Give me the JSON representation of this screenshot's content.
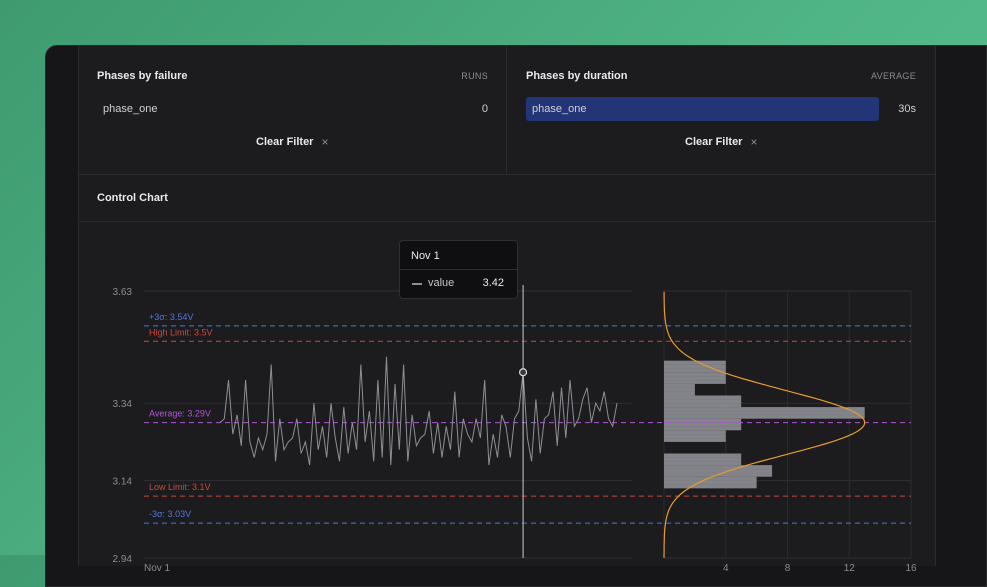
{
  "failure": {
    "title": "Phases by failure",
    "header": "RUNS",
    "row_label": "phase_one",
    "row_value": "0",
    "clear_label": "Clear Filter"
  },
  "duration": {
    "title": "Phases by duration",
    "header": "AVERAGE",
    "row_label": "phase_one",
    "row_value": "30s",
    "clear_label": "Clear Filter"
  },
  "colors": {
    "sigma": "#4f78d8",
    "limit": "#c9483f",
    "average": "#b055d6",
    "series": "#8e8f95",
    "histogram": "#8f8f96",
    "normal_curve": "#e89b2e",
    "accent_bar": "#233477"
  },
  "control_chart": {
    "title": "Control Chart",
    "tooltip": {
      "date": "Nov 1",
      "series": "value",
      "value": "3.42"
    }
  },
  "chart_data": [
    {
      "type": "line",
      "title": "",
      "xlabel": "",
      "ylabel": "",
      "x_tick_labels": [
        "Nov 1"
      ],
      "y_tick_labels": [
        "3.63",
        "3.34",
        "3.14",
        "2.94"
      ],
      "ylim": [
        2.94,
        3.63
      ],
      "series": [
        {
          "name": "value",
          "values": [
            3.29,
            3.3,
            3.4,
            3.26,
            3.31,
            3.23,
            3.4,
            3.24,
            3.2,
            3.25,
            3.22,
            3.26,
            3.44,
            3.19,
            3.3,
            3.22,
            3.24,
            3.25,
            3.3,
            3.21,
            3.24,
            3.18,
            3.34,
            3.22,
            3.28,
            3.2,
            3.34,
            3.25,
            3.19,
            3.33,
            3.21,
            3.29,
            3.22,
            3.44,
            3.24,
            3.32,
            3.19,
            3.4,
            3.2,
            3.46,
            3.18,
            3.39,
            3.22,
            3.44,
            3.19,
            3.31,
            3.23,
            3.25,
            3.26,
            3.32,
            3.21,
            3.29,
            3.2,
            3.28,
            3.22,
            3.37,
            3.2,
            3.3,
            3.26,
            3.24,
            3.3,
            3.25,
            3.4,
            3.18,
            3.26,
            3.2,
            3.31,
            3.28,
            3.2,
            3.3,
            3.32,
            3.42,
            3.25,
            3.19,
            3.35,
            3.21,
            3.3,
            3.31,
            3.37,
            3.23,
            3.38,
            3.25,
            3.4,
            3.28,
            3.3,
            3.35,
            3.38,
            3.29,
            3.34,
            3.32,
            3.37,
            3.3,
            3.28,
            3.34
          ]
        }
      ],
      "reference_lines": [
        {
          "label": "+3σ: 3.54V",
          "value": 3.54,
          "kind": "sigma"
        },
        {
          "label": "High Limit: 3.5V",
          "value": 3.5,
          "kind": "limit"
        },
        {
          "label": "Average: 3.29V",
          "value": 3.29,
          "kind": "average"
        },
        {
          "label": "Low Limit: 3.1V",
          "value": 3.1,
          "kind": "limit"
        },
        {
          "label": "-3σ: 3.03V",
          "value": 3.03,
          "kind": "sigma"
        }
      ],
      "cursor": {
        "x_index": 71,
        "value": 3.42
      },
      "grid": true
    },
    {
      "type": "bar",
      "orientation": "horizontal",
      "x_tick_labels": [
        "4",
        "8",
        "12",
        "16"
      ],
      "xlim": [
        0,
        16
      ],
      "bins": [
        {
          "from": 3.12,
          "to": 3.15,
          "count": 6
        },
        {
          "from": 3.15,
          "to": 3.18,
          "count": 7
        },
        {
          "from": 3.18,
          "to": 3.21,
          "count": 5
        },
        {
          "from": 3.21,
          "to": 3.24,
          "count": 0
        },
        {
          "from": 3.24,
          "to": 3.27,
          "count": 4
        },
        {
          "from": 3.27,
          "to": 3.3,
          "count": 5
        },
        {
          "from": 3.3,
          "to": 3.33,
          "count": 13
        },
        {
          "from": 3.33,
          "to": 3.36,
          "count": 5
        },
        {
          "from": 3.36,
          "to": 3.39,
          "count": 2
        },
        {
          "from": 3.39,
          "to": 3.42,
          "count": 4
        },
        {
          "from": 3.42,
          "to": 3.45,
          "count": 4
        }
      ],
      "normal_curve": {
        "mean": 3.29,
        "peak": 13,
        "sigma": 0.083
      }
    }
  ]
}
